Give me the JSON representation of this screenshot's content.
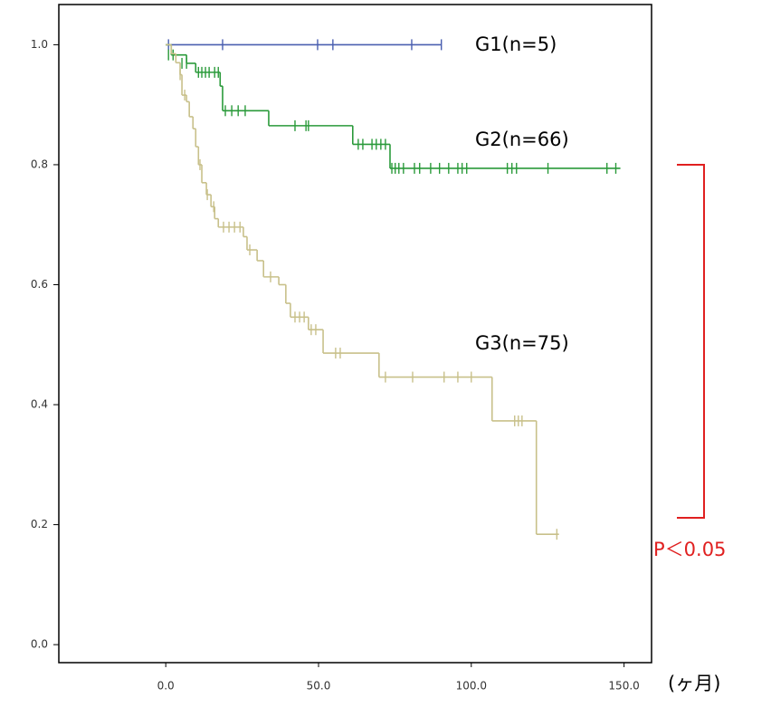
{
  "chart_data": {
    "type": "survival",
    "x_unit_label": "(ヶ月)",
    "xlim": [
      -35,
      159
    ],
    "ylim": [
      -0.03,
      1.067
    ],
    "xticks": [
      {
        "value": 0,
        "label": "0.0"
      },
      {
        "value": 50,
        "label": "50.0"
      },
      {
        "value": 100,
        "label": "100.0"
      },
      {
        "value": 150,
        "label": "150.0"
      }
    ],
    "yticks": [
      {
        "value": 0,
        "label": "0.0"
      },
      0.2,
      0.4,
      0.6,
      0.8,
      {
        "value": 1,
        "label": "1.0"
      }
    ],
    "annotation": "P＜0.05",
    "series": [
      {
        "name": "G1(n=5)",
        "color": "#4a5fb0",
        "x": [
          0,
          90.2
        ],
        "values": [
          1.0,
          1.0
        ],
        "censor_x": [
          0.9,
          18.6,
          49.7,
          54.7,
          80.5,
          90.2
        ],
        "censor_values": [
          1.0,
          1.0,
          1.0,
          1.0,
          1.0,
          1.0
        ]
      },
      {
        "name": "G2(n=66)",
        "color": "#2a9a3a",
        "x": [
          0,
          1.8,
          6.8,
          9.8,
          17.8,
          18.6,
          33.7,
          61.2,
          73.4,
          148.8
        ],
        "values": [
          1.0,
          0.983,
          0.969,
          0.954,
          0.931,
          0.89,
          0.865,
          0.834,
          0.794,
          0.794
        ],
        "censor_x": [
          0.9,
          2.4,
          5.3,
          6.8,
          10.7,
          11.8,
          13.0,
          14.2,
          16.0,
          17.2,
          19.5,
          21.6,
          23.7,
          26.0,
          42.3,
          45.9,
          46.7,
          63.0,
          64.5,
          67.5,
          68.9,
          70.4,
          71.9,
          74.0,
          75.1,
          76.3,
          77.8,
          81.4,
          83.1,
          86.7,
          89.6,
          92.6,
          95.6,
          97.0,
          98.5,
          111.8,
          113.3,
          114.8,
          125.1,
          144.4,
          147.3
        ],
        "censor_values": [
          0.983,
          0.983,
          0.969,
          0.969,
          0.954,
          0.954,
          0.954,
          0.954,
          0.954,
          0.954,
          0.89,
          0.89,
          0.89,
          0.89,
          0.865,
          0.865,
          0.865,
          0.834,
          0.834,
          0.834,
          0.834,
          0.834,
          0.834,
          0.794,
          0.794,
          0.794,
          0.794,
          0.794,
          0.794,
          0.794,
          0.794,
          0.794,
          0.794,
          0.794,
          0.794,
          0.794,
          0.794,
          0.794,
          0.794,
          0.794,
          0.794
        ]
      },
      {
        "name": "G3(n=75)",
        "color": "#c8c08a",
        "x": [
          0,
          1.8,
          3.3,
          4.7,
          5.3,
          6.8,
          7.7,
          8.9,
          9.8,
          10.7,
          11.8,
          13.3,
          14.8,
          16.0,
          17.2,
          25.4,
          26.6,
          29.9,
          32.0,
          37.0,
          39.3,
          40.8,
          46.7,
          51.5,
          69.8,
          106.8,
          121.3,
          128.7
        ],
        "values": [
          1.0,
          0.985,
          0.97,
          0.95,
          0.916,
          0.905,
          0.88,
          0.86,
          0.83,
          0.8,
          0.77,
          0.75,
          0.73,
          0.71,
          0.696,
          0.68,
          0.658,
          0.64,
          0.613,
          0.6,
          0.569,
          0.546,
          0.525,
          0.486,
          0.446,
          0.373,
          0.184,
          0.184
        ],
        "censor_x": [
          4.7,
          6.2,
          11.2,
          13.6,
          15.7,
          18.9,
          20.7,
          22.5,
          24.3,
          27.5,
          34.3,
          42.3,
          43.8,
          45.3,
          47.6,
          49.1,
          55.6,
          57.1,
          71.9,
          80.8,
          91.1,
          95.6,
          100.0,
          114.2,
          115.4,
          116.6,
          128.0
        ],
        "censor_values": [
          0.95,
          0.916,
          0.8,
          0.75,
          0.73,
          0.696,
          0.696,
          0.696,
          0.696,
          0.658,
          0.613,
          0.546,
          0.546,
          0.546,
          0.525,
          0.525,
          0.486,
          0.486,
          0.446,
          0.446,
          0.446,
          0.446,
          0.446,
          0.373,
          0.373,
          0.373,
          0.184
        ]
      }
    ]
  }
}
